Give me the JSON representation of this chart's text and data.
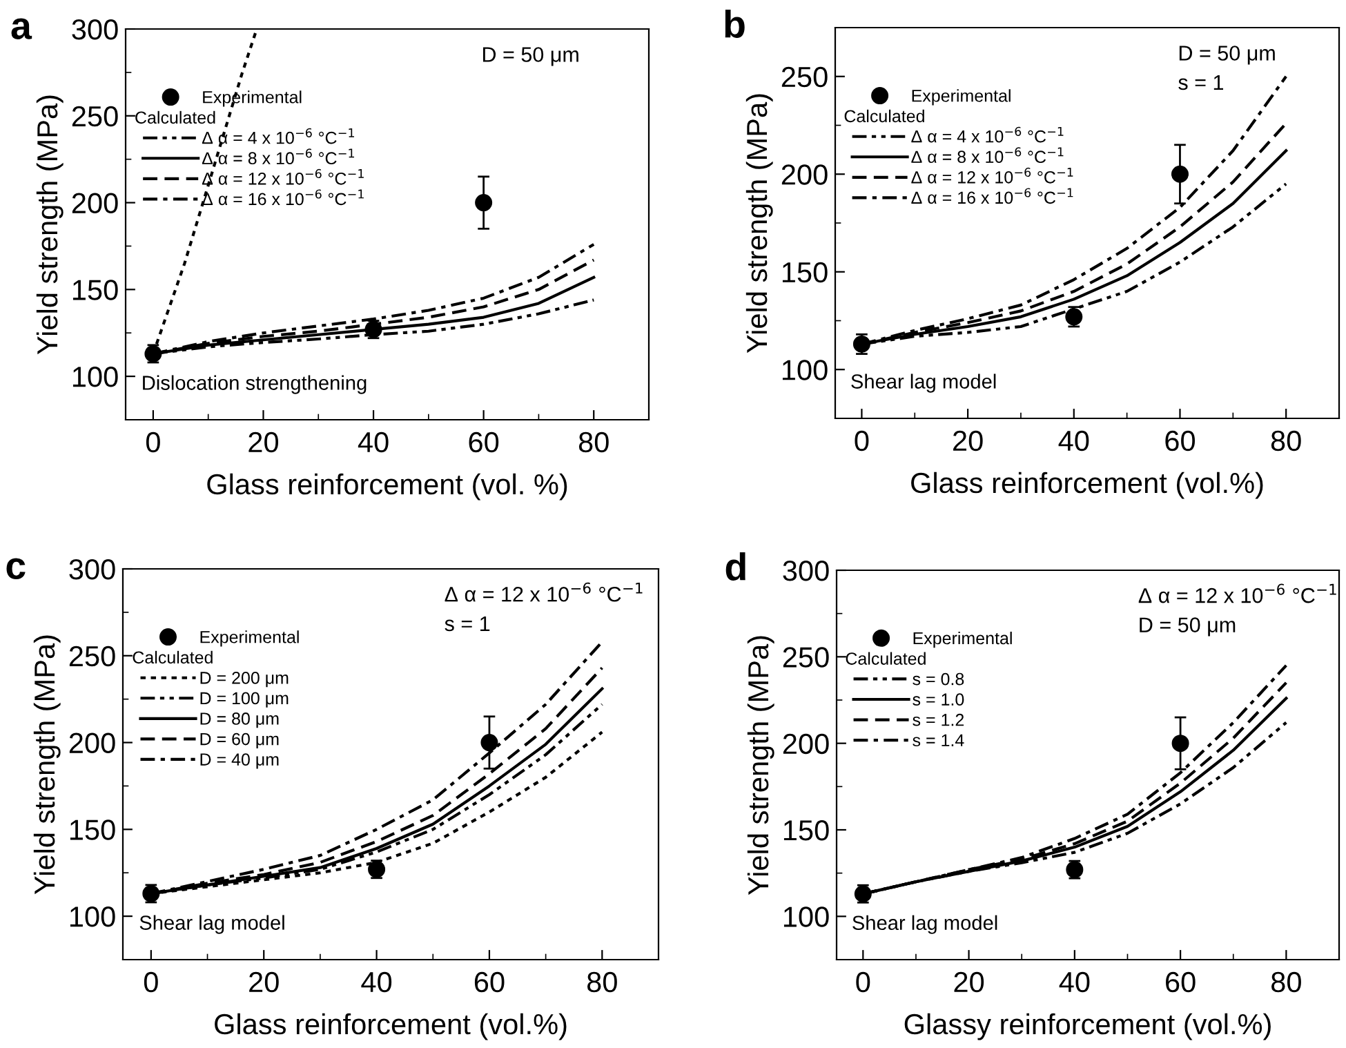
{
  "chart_data": [
    {
      "type": "line",
      "title": "a",
      "xlabel": "Glass reinforcement (vol. %)",
      "ylabel": "Yield strength (MPa)",
      "xlim": [
        -5,
        90
      ],
      "ylim": [
        75,
        300
      ],
      "xticks": [
        0,
        20,
        40,
        60,
        80
      ],
      "yticks": [
        100,
        150,
        200,
        250,
        300
      ],
      "legend": "top left",
      "legend_title": "Calculated",
      "annotations": [
        "D = 50 μm",
        "Dislocation strengthening"
      ],
      "x": [
        0,
        10,
        20,
        30,
        40,
        50,
        60,
        70,
        80
      ],
      "series": [
        {
          "name": "Experimental",
          "type": "scatter",
          "marker": "circle",
          "color": "#000000",
          "x": [
            0,
            40,
            60
          ],
          "values": [
            113,
            127,
            200
          ],
          "errors": [
            [
              108,
              118
            ],
            [
              122,
              132
            ],
            [
              185,
              215
            ]
          ]
        },
        {
          "name": "Δ α = 4 x 10$^{−6}$ °C$^{−1}$",
          "color": "#000000",
          "line_style": "dashdotdot",
          "values": [
            113,
            117,
            119.5,
            121.5,
            124,
            126,
            130,
            136,
            144
          ]
        },
        {
          "name": "Δ α = 8 x 10$^{−6}$ °C$^{−1}$",
          "color": "#000000",
          "line_style": "solid",
          "values": [
            113,
            118,
            121,
            124,
            127,
            130,
            134,
            142,
            157
          ]
        },
        {
          "name": "Δ α = 12 x 10$^{−6}$ °C$^{−1}$",
          "color": "#000000",
          "line_style": "dashed",
          "values": [
            113,
            119,
            123,
            126,
            130,
            134,
            140,
            150,
            167
          ]
        },
        {
          "name": "Δ α = 16 x 10$^{−6}$ °C$^{−1}$",
          "color": "#000000",
          "line_style": "dashdot",
          "values": [
            113,
            120,
            125,
            129,
            133,
            138,
            145,
            157,
            176
          ]
        },
        {
          "color": "#000000",
          "line_style": "dotted",
          "x": [
            0,
            5.7,
            10,
            16.1,
            18.6
          ],
          "values": [
            113,
            165,
            210,
            274,
            298
          ]
        }
      ]
    },
    {
      "type": "line",
      "title": "b",
      "xlabel": "Glass reinforcement (vol.%)",
      "ylabel": "Yield strength (MPa)",
      "xlim": [
        -5,
        90
      ],
      "ylim": [
        75,
        275
      ],
      "xticks": [
        0,
        20,
        40,
        60,
        80
      ],
      "yticks": [
        100,
        150,
        200,
        250
      ],
      "legend": "top left",
      "legend_title": "Calculated",
      "annotations": [
        "D = 50 μm",
        "s = 1",
        "Shear lag model"
      ],
      "x": [
        0,
        10,
        20,
        30,
        40,
        50,
        60,
        70,
        80
      ],
      "series": [
        {
          "name": "Experimental",
          "type": "scatter",
          "marker": "circle",
          "color": "#000000",
          "x": [
            0,
            40,
            60
          ],
          "values": [
            113,
            127,
            200
          ],
          "errors": [
            [
              108,
              118
            ],
            [
              122,
              132
            ],
            [
              185,
              215
            ]
          ]
        },
        {
          "name": "Δ α = 4 x 10$^{−6}$ °C$^{−1}$",
          "color": "#000000",
          "line_style": "dashdotdot",
          "values": [
            113,
            117,
            119,
            122,
            131,
            140,
            155,
            173,
            195
          ]
        },
        {
          "name": "Δ α = 8 x 10$^{−6}$ °C$^{−1}$",
          "color": "#000000",
          "line_style": "solid",
          "values": [
            113,
            118,
            122,
            127,
            136,
            148,
            165,
            185,
            212
          ]
        },
        {
          "name": "Δ α = 12 x 10$^{−6}$ °C$^{−1}$",
          "color": "#000000",
          "line_style": "dashed",
          "values": [
            113,
            119,
            124,
            130,
            140,
            154,
            173,
            196,
            226
          ]
        },
        {
          "name": "Δ α = 16 x 10$^{−6}$ °C$^{−1}$",
          "color": "#000000",
          "line_style": "dashdot",
          "values": [
            113,
            120,
            126,
            133,
            146,
            162,
            183,
            212,
            250
          ]
        }
      ]
    },
    {
      "type": "line",
      "title": "c",
      "xlabel": "Glass reinforcement (vol.%)",
      "ylabel": "Yield strength (MPa)",
      "xlim": [
        -5,
        90
      ],
      "ylim": [
        75,
        300
      ],
      "xticks": [
        0,
        20,
        40,
        60,
        80
      ],
      "yticks": [
        100,
        150,
        200,
        250,
        300
      ],
      "legend": "top left",
      "legend_title": "Calculated",
      "annotations": [
        "Δ α = 12 x 10$^{−6}$ °C$^{−1}$",
        "s = 1",
        "Shear lag model"
      ],
      "x": [
        0,
        10,
        20,
        30,
        40,
        50,
        60,
        70,
        80
      ],
      "series": [
        {
          "name": "Experimental",
          "type": "scatter",
          "marker": "circle",
          "color": "#000000",
          "x": [
            0,
            40,
            60
          ],
          "values": [
            113,
            127,
            200
          ],
          "errors": [
            [
              108,
              118
            ],
            [
              122,
              132
            ],
            [
              185,
              215
            ]
          ]
        },
        {
          "name": "D = 200 μm",
          "color": "#000000",
          "line_style": "dotted",
          "values": [
            113,
            117,
            121,
            125,
            131,
            142,
            160,
            180,
            206
          ]
        },
        {
          "name": "D = 100 μm",
          "color": "#000000",
          "line_style": "dashdotdot",
          "values": [
            113,
            118,
            122,
            127,
            137,
            150,
            170,
            193,
            222
          ]
        },
        {
          "name": "D = 80 μm",
          "color": "#000000",
          "line_style": "solid",
          "values": [
            113,
            118,
            123,
            128,
            139,
            153,
            175,
            199,
            231
          ]
        },
        {
          "name": "D = 60 μm",
          "color": "#000000",
          "line_style": "dashed",
          "values": [
            113,
            119,
            124,
            131,
            143,
            158,
            182,
            208,
            243
          ]
        },
        {
          "name": "D = 40 μm",
          "color": "#000000",
          "line_style": "dashdot",
          "values": [
            113,
            120,
            127,
            135,
            150,
            167,
            194,
            222,
            258
          ]
        }
      ]
    },
    {
      "type": "line",
      "title": "d",
      "xlabel": "Glassy reinforcement (vol.%)",
      "ylabel": "Yield strength (MPa)",
      "xlim": [
        -5,
        90
      ],
      "ylim": [
        75,
        300
      ],
      "xticks": [
        0,
        20,
        40,
        60,
        80
      ],
      "yticks": [
        100,
        150,
        200,
        250,
        300
      ],
      "legend": "top left",
      "legend_title": "Calculated",
      "annotations": [
        "Δ α = 12 x 10$^{−6}$ °C$^{−1}$",
        "D = 50 μm",
        "Shear lag model"
      ],
      "x": [
        0,
        10,
        20,
        30,
        40,
        50,
        60,
        70,
        80
      ],
      "series": [
        {
          "name": "Experimental",
          "type": "scatter",
          "marker": "circle",
          "color": "#000000",
          "x": [
            0,
            40,
            60
          ],
          "values": [
            113,
            127,
            200
          ],
          "errors": [
            [
              108,
              118
            ],
            [
              122,
              132
            ],
            [
              185,
              215
            ]
          ]
        },
        {
          "name": "s = 0.8",
          "color": "#000000",
          "line_style": "dashdotdot",
          "values": [
            113,
            120,
            126,
            131,
            137,
            148,
            165,
            186,
            212
          ]
        },
        {
          "name": "s = 1.0",
          "color": "#000000",
          "line_style": "solid",
          "values": [
            113,
            120,
            126,
            132,
            140,
            152,
            172,
            196,
            226
          ]
        },
        {
          "name": "s = 1.2",
          "color": "#000000",
          "line_style": "dashed",
          "values": [
            113,
            120,
            127,
            133,
            142,
            155,
            177,
            203,
            235
          ]
        },
        {
          "name": "s = 1.4",
          "color": "#000000",
          "line_style": "dashdot",
          "values": [
            113,
            120,
            127,
            134,
            145,
            159,
            183,
            212,
            245
          ]
        }
      ]
    }
  ]
}
